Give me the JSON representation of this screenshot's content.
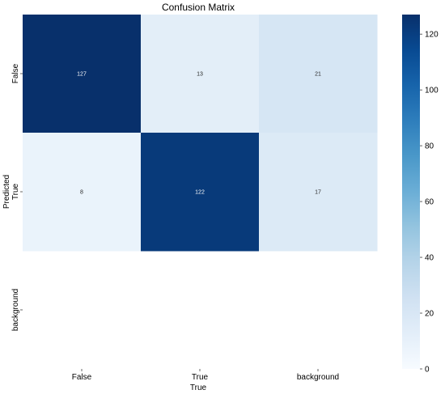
{
  "chart_data": {
    "type": "heatmap",
    "title": "Confusion Matrix",
    "xlabel": "True",
    "ylabel": "Predicted",
    "x_categories": [
      "False",
      "True",
      "background"
    ],
    "y_categories": [
      "False",
      "True",
      "background"
    ],
    "values": [
      [
        127,
        13,
        21
      ],
      [
        8,
        122,
        17
      ],
      [
        null,
        null,
        null
      ]
    ],
    "colorbar": {
      "range": [
        0,
        127
      ],
      "ticks": [
        0,
        20,
        40,
        60,
        80,
        100,
        120
      ],
      "colormap": "Blues"
    },
    "colors": {
      "low": "#f7fbff",
      "high": "#08306b"
    }
  }
}
